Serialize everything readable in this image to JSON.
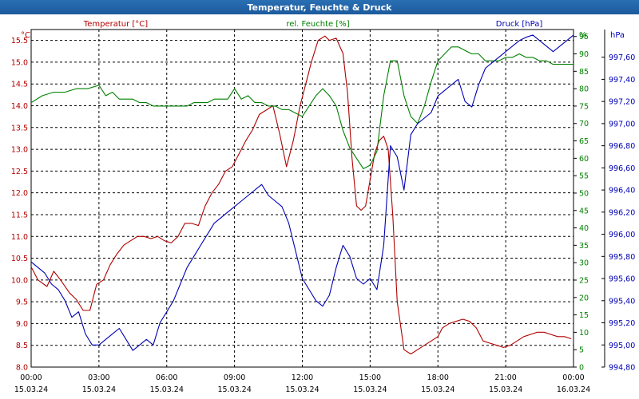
{
  "window": {
    "title": "Temperatur, Feuchte & Druck"
  },
  "chart_data": {
    "type": "line",
    "title": "Temperatur, Feuchte & Druck",
    "grid": true,
    "colors": {
      "temperature": "#b00000",
      "humidity": "#008000",
      "pressure": "#0000b4",
      "grid": "#000000"
    },
    "x_time_ticks": [
      "00:00",
      "03:00",
      "06:00",
      "09:00",
      "12:00",
      "15:00",
      "18:00",
      "21:00",
      "00:00"
    ],
    "x_date_ticks": [
      "15.03.24",
      "15.03.24",
      "15.03.24",
      "15.03.24",
      "15.03.24",
      "15.03.24",
      "15.03.24",
      "15.03.24",
      "16.03.24"
    ],
    "xlim": [
      0,
      24
    ],
    "axes": {
      "temperature": {
        "label": "Temperatur [°C]",
        "unit": "°C",
        "ylim": [
          8.0,
          15.75
        ],
        "ticks": [
          "8.0",
          "8.5",
          "9.0",
          "9.5",
          "10.0",
          "10.5",
          "11.0",
          "11.5",
          "12.0",
          "12.5",
          "13.0",
          "13.5",
          "14.0",
          "14.5",
          "15.0",
          "15.5"
        ]
      },
      "humidity": {
        "label": "rel. Feuchte [%]",
        "unit": "%",
        "ylim": [
          0,
          97
        ],
        "ticks": [
          "0",
          "5",
          "10",
          "15",
          "20",
          "25",
          "30",
          "35",
          "40",
          "45",
          "50",
          "55",
          "60",
          "65",
          "70",
          "75",
          "80",
          "85",
          "90",
          "95"
        ]
      },
      "pressure": {
        "label": "Druck [hPa]",
        "unit": "hPa",
        "ylim": [
          994.8,
          997.85
        ],
        "ticks": [
          "994,80",
          "995,00",
          "995,20",
          "995,40",
          "995,60",
          "995,80",
          "996,00",
          "996,20",
          "996,40",
          "996,60",
          "996,80",
          "997,00",
          "997,20",
          "997,40",
          "997,60"
        ]
      }
    },
    "series": [
      {
        "name": "Temperatur [°C]",
        "axis": "temperature",
        "color": "#b00000",
        "x": [
          0,
          0.3,
          0.7,
          1.0,
          1.3,
          1.7,
          2.0,
          2.3,
          2.6,
          2.9,
          3.2,
          3.5,
          3.8,
          4.1,
          4.4,
          4.7,
          5.0,
          5.3,
          5.6,
          5.9,
          6.2,
          6.5,
          6.8,
          7.1,
          7.4,
          7.7,
          8.0,
          8.3,
          8.6,
          8.9,
          9.2,
          9.5,
          9.8,
          10.1,
          10.4,
          10.7,
          11.0,
          11.3,
          11.6,
          11.9,
          12.2,
          12.4,
          12.7,
          13.0,
          13.2,
          13.5,
          13.8,
          14.0,
          14.2,
          14.4,
          14.6,
          14.8,
          15.0,
          15.2,
          15.4,
          15.6,
          15.8,
          16.0,
          16.2,
          16.5,
          16.8,
          17.1,
          17.4,
          17.7,
          18.0,
          18.2,
          18.5,
          18.8,
          19.1,
          19.4,
          19.7,
          20.0,
          20.3,
          20.6,
          20.9,
          21.2,
          21.5,
          21.8,
          22.1,
          22.4,
          22.7,
          23.0,
          23.3,
          23.6,
          23.9
        ],
        "values": [
          10.3,
          10.0,
          9.85,
          10.2,
          10.0,
          9.7,
          9.55,
          9.3,
          9.3,
          9.9,
          10.0,
          10.35,
          10.6,
          10.8,
          10.9,
          11.0,
          11.0,
          10.95,
          11.0,
          10.9,
          10.85,
          11.0,
          11.3,
          11.3,
          11.25,
          11.7,
          12.0,
          12.2,
          12.5,
          12.6,
          12.9,
          13.2,
          13.45,
          13.8,
          13.9,
          14.0,
          13.35,
          12.6,
          13.2,
          14.0,
          14.6,
          15.0,
          15.5,
          15.6,
          15.5,
          15.55,
          15.2,
          14.3,
          12.8,
          11.7,
          11.6,
          11.7,
          12.3,
          12.9,
          13.2,
          13.3,
          13.0,
          11.5,
          9.5,
          8.4,
          8.3,
          8.4,
          8.5,
          8.6,
          8.7,
          8.9,
          9.0,
          9.05,
          9.1,
          9.05,
          8.9,
          8.6,
          8.55,
          8.5,
          8.45,
          8.5,
          8.6,
          8.7,
          8.75,
          8.8,
          8.8,
          8.75,
          8.7,
          8.7,
          8.65
        ]
      },
      {
        "name": "rel. Feuchte [%]",
        "axis": "humidity",
        "color": "#008000",
        "x": [
          0,
          0.5,
          1.0,
          1.5,
          2.0,
          2.5,
          3.0,
          3.3,
          3.6,
          3.9,
          4.2,
          4.5,
          4.8,
          5.1,
          5.4,
          5.7,
          6.0,
          6.3,
          6.6,
          6.9,
          7.2,
          7.5,
          7.8,
          8.1,
          8.4,
          8.7,
          9.0,
          9.3,
          9.6,
          9.9,
          10.2,
          10.5,
          10.8,
          11.1,
          11.4,
          11.7,
          12.0,
          12.3,
          12.6,
          12.9,
          13.2,
          13.5,
          13.8,
          14.1,
          14.4,
          14.7,
          15.0,
          15.3,
          15.6,
          15.9,
          16.2,
          16.5,
          16.8,
          17.1,
          17.4,
          17.7,
          18.0,
          18.3,
          18.6,
          18.9,
          19.2,
          19.5,
          19.8,
          20.1,
          20.4,
          20.7,
          21.0,
          21.3,
          21.6,
          21.9,
          22.2,
          22.5,
          22.8,
          23.1,
          23.4,
          23.7,
          24.0
        ],
        "values": [
          76,
          78,
          79,
          79,
          80,
          80,
          81,
          78,
          79,
          77,
          77,
          77,
          76,
          76,
          75,
          75,
          75,
          75,
          75,
          75,
          76,
          76,
          76,
          77,
          77,
          77,
          80,
          77,
          78,
          76,
          76,
          75,
          75,
          74,
          74,
          73,
          72,
          75,
          78,
          80,
          78,
          75,
          68,
          63,
          60,
          57,
          58,
          62,
          78,
          88,
          88,
          78,
          72,
          70,
          75,
          82,
          88,
          90,
          92,
          92,
          91,
          90,
          90,
          88,
          88,
          88,
          89,
          89,
          90,
          89,
          89,
          88,
          88,
          87,
          87,
          87,
          87
        ]
      },
      {
        "name": "Druck [hPa]",
        "axis": "pressure",
        "color": "#0000b4",
        "x": [
          0,
          0.3,
          0.6,
          0.9,
          1.2,
          1.5,
          1.8,
          2.1,
          2.4,
          2.7,
          3.0,
          3.3,
          3.6,
          3.9,
          4.2,
          4.5,
          4.8,
          5.1,
          5.4,
          5.7,
          6.0,
          6.3,
          6.6,
          6.9,
          7.2,
          7.5,
          7.8,
          8.1,
          8.4,
          8.7,
          9.0,
          9.3,
          9.6,
          9.9,
          10.2,
          10.5,
          10.8,
          11.1,
          11.4,
          11.7,
          12.0,
          12.3,
          12.6,
          12.9,
          13.2,
          13.5,
          13.8,
          14.1,
          14.4,
          14.7,
          15.0,
          15.3,
          15.6,
          15.9,
          16.2,
          16.5,
          16.8,
          17.1,
          17.4,
          17.7,
          18.0,
          18.3,
          18.6,
          18.9,
          19.2,
          19.5,
          19.8,
          20.1,
          20.4,
          20.7,
          21.0,
          21.3,
          21.6,
          21.9,
          22.2,
          22.5,
          22.8,
          23.1,
          23.4,
          23.7,
          24.0
        ],
        "values": [
          995.75,
          995.7,
          995.65,
          995.55,
          995.5,
          995.4,
          995.25,
          995.3,
          995.1,
          995.0,
          995.0,
          995.05,
          995.1,
          995.15,
          995.05,
          994.95,
          995.0,
          995.05,
          995.0,
          995.2,
          995.3,
          995.4,
          995.55,
          995.7,
          995.8,
          995.9,
          996.0,
          996.1,
          996.15,
          996.2,
          996.25,
          996.3,
          996.35,
          996.4,
          996.45,
          996.35,
          996.3,
          996.25,
          996.1,
          995.85,
          995.6,
          995.5,
          995.4,
          995.35,
          995.45,
          995.7,
          995.9,
          995.8,
          995.6,
          995.55,
          995.6,
          995.5,
          995.9,
          996.8,
          996.7,
          996.4,
          996.9,
          997.0,
          997.05,
          997.1,
          997.25,
          997.3,
          997.35,
          997.4,
          997.2,
          997.15,
          997.35,
          997.5,
          997.55,
          997.6,
          997.65,
          997.7,
          997.75,
          997.78,
          997.8,
          997.75,
          997.7,
          997.65,
          997.7,
          997.75,
          997.8
        ]
      }
    ]
  }
}
